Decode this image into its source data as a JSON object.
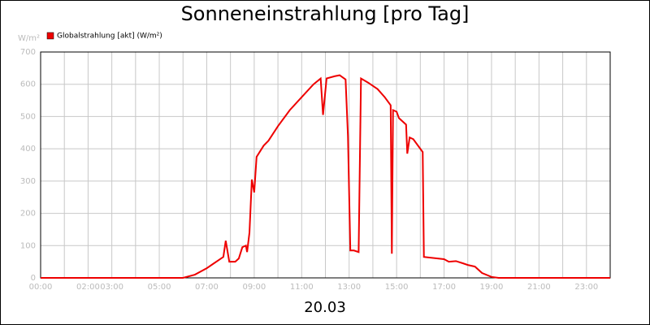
{
  "chart_data": {
    "type": "line",
    "title": "Sonneneinstrahlung [pro Tag]",
    "y_unit": "W/m²",
    "x_caption": "20.03",
    "legend": "top-left",
    "grid": true,
    "xlim": [
      0,
      24
    ],
    "ylim": [
      0,
      700
    ],
    "yticks": [
      0,
      100,
      200,
      300,
      400,
      500,
      600,
      700
    ],
    "xticks": [
      {
        "value": 0,
        "label": "00:00"
      },
      {
        "value": 1,
        "label": null
      },
      {
        "value": 2,
        "label": "02:00"
      },
      {
        "value": 3,
        "label": "03:00"
      },
      {
        "value": 4,
        "label": null
      },
      {
        "value": 5,
        "label": "05:00"
      },
      {
        "value": 6,
        "label": null
      },
      {
        "value": 7,
        "label": "07:00"
      },
      {
        "value": 8,
        "label": null
      },
      {
        "value": 9,
        "label": "09:00"
      },
      {
        "value": 10,
        "label": null
      },
      {
        "value": 11,
        "label": "11:00"
      },
      {
        "value": 12,
        "label": null
      },
      {
        "value": 13,
        "label": "13:00"
      },
      {
        "value": 14,
        "label": null
      },
      {
        "value": 15,
        "label": "15:00"
      },
      {
        "value": 16,
        "label": null
      },
      {
        "value": 17,
        "label": "17:00"
      },
      {
        "value": 18,
        "label": null
      },
      {
        "value": 19,
        "label": "19:00"
      },
      {
        "value": 20,
        "label": null
      },
      {
        "value": 21,
        "label": "21:00"
      },
      {
        "value": 22,
        "label": null
      },
      {
        "value": 23,
        "label": "23:00"
      },
      {
        "value": 24,
        "label": null
      }
    ],
    "x": [
      0,
      6.0,
      6.5,
      7.0,
      7.3,
      7.5,
      7.7,
      7.8,
      7.95,
      8.2,
      8.35,
      8.5,
      8.65,
      8.7,
      8.8,
      8.9,
      9.0,
      9.1,
      9.4,
      9.6,
      10.0,
      10.5,
      11.0,
      11.5,
      11.8,
      11.9,
      12.05,
      12.4,
      12.6,
      12.85,
      12.95,
      13.05,
      13.2,
      13.4,
      13.5,
      13.8,
      14.2,
      14.5,
      14.75,
      14.8,
      14.85,
      15.0,
      15.1,
      15.4,
      15.45,
      15.55,
      15.7,
      16.1,
      16.15,
      16.5,
      17.0,
      17.2,
      17.5,
      17.8,
      18.0,
      18.3,
      18.6,
      19.0,
      19.3,
      24
    ],
    "series": [
      {
        "name": "Globalstrahlung [akt] (W/m²)",
        "color": "#ee0000",
        "values": [
          0,
          0,
          10,
          30,
          45,
          55,
          65,
          115,
          50,
          50,
          60,
          95,
          100,
          80,
          140,
          305,
          265,
          375,
          410,
          425,
          470,
          520,
          560,
          600,
          618,
          505,
          618,
          625,
          628,
          615,
          440,
          85,
          85,
          80,
          618,
          605,
          585,
          560,
          535,
          75,
          520,
          515,
          495,
          475,
          385,
          435,
          430,
          390,
          65,
          62,
          58,
          50,
          52,
          45,
          40,
          35,
          15,
          3,
          0,
          0
        ]
      }
    ]
  }
}
